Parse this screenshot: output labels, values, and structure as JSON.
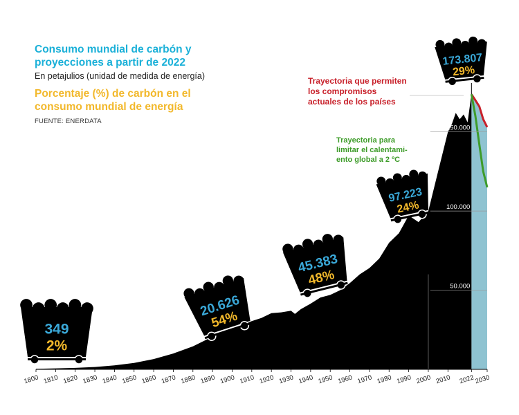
{
  "header": {
    "title": "Consumo mundial de carbón y proyecciones a partir de 2022",
    "subtitle": "En petajulios (unidad de medida de energía)",
    "title2": "Porcentaje (%) de carbón en el consumo mundial de energía",
    "source": "FUENTE: ENERDATA"
  },
  "annotations": {
    "commitments": "Trayectoria que permiten los compromisos actuales de los países",
    "two_degrees": "Trayectoria para limitar el calentami-ento global a 2 ºC"
  },
  "colors": {
    "area": "#000000",
    "projection_band": "#8fc3d1",
    "commitments_line": "#c8202a",
    "two_degrees_line": "#3e9c2a",
    "value_text": "#3aa8d8",
    "percent_text": "#f2b82b"
  },
  "chart_data": {
    "type": "area",
    "xlim": [
      1800,
      2030
    ],
    "ylim": [
      0,
      180000
    ],
    "x_ticks": [
      "1800",
      "1810",
      "1820",
      "1830",
      "1840",
      "1850",
      "1860",
      "1870",
      "1880",
      "1890",
      "1900",
      "1910",
      "1920",
      "1930",
      "1940",
      "1950",
      "1960",
      "1970",
      "1980",
      "1990",
      "2000",
      "2010",
      "2022",
      "2030"
    ],
    "y_ticks": [
      {
        "value": 50000,
        "label": "50.000"
      },
      {
        "value": 100000,
        "label": "100.000"
      },
      {
        "value": 150000,
        "label": "150.000"
      }
    ],
    "series": [
      {
        "x": [
          1800,
          1810,
          1820,
          1830,
          1840,
          1850,
          1860,
          1870,
          1880,
          1890,
          1900,
          1905,
          1910,
          1915,
          1920,
          1925,
          1930,
          1932,
          1935,
          1940,
          1945,
          1950,
          1955,
          1960,
          1965,
          1970,
          1975,
          1980,
          1985,
          1990,
          1995,
          2000,
          2002,
          2005,
          2008,
          2010,
          2012,
          2014,
          2016,
          2018,
          2020,
          2022
        ],
        "y": [
          349,
          600,
          900,
          1500,
          2500,
          4000,
          6500,
          10000,
          14500,
          20626,
          25000,
          28000,
          30500,
          32500,
          35500,
          36000,
          37000,
          35000,
          38000,
          41500,
          45383,
          47000,
          50000,
          54500,
          60000,
          64000,
          70000,
          80000,
          86000,
          97223,
          93000,
          100000,
          110000,
          125000,
          140000,
          150000,
          155000,
          162000,
          158000,
          161000,
          156000,
          173807
        ]
      }
    ],
    "projections": [
      {
        "name": "commitments",
        "x": [
          2022,
          2024,
          2026,
          2028,
          2030
        ],
        "y": [
          173807,
          170000,
          166000,
          158000,
          153000
        ]
      },
      {
        "name": "two_degrees",
        "x": [
          2022,
          2024,
          2026,
          2028,
          2030
        ],
        "y": [
          173807,
          160000,
          142000,
          125000,
          115000
        ]
      }
    ],
    "callouts": [
      {
        "year": 1800,
        "value": "349",
        "percent": "2%"
      },
      {
        "year": 1890,
        "value": "20.626",
        "percent": "54%"
      },
      {
        "year": 1945,
        "value": "45.383",
        "percent": "48%"
      },
      {
        "year": 1990,
        "value": "97.223",
        "percent": "24%"
      },
      {
        "year": 2022,
        "value": "173.807",
        "percent": "29%"
      }
    ]
  }
}
